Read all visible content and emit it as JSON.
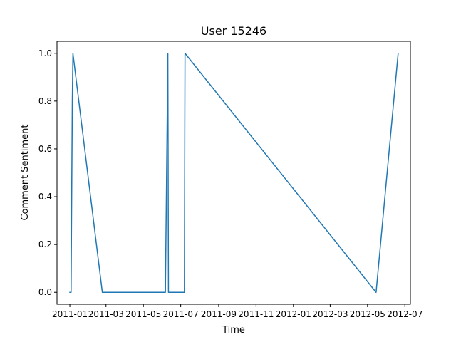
{
  "chart_data": {
    "type": "line",
    "title": "User 15246",
    "xlabel": "Time",
    "ylabel": "Comment Sentiment",
    "x_tick_labels": [
      "2011-01",
      "2011-03",
      "2011-05",
      "2011-07",
      "2011-09",
      "2011-11",
      "2012-01",
      "2012-03",
      "2012-05",
      "2012-07"
    ],
    "x_ticks": [
      "2011-01-01",
      "2011-03-01",
      "2011-05-01",
      "2011-07-01",
      "2011-09-01",
      "2011-11-01",
      "2012-01-01",
      "2012-03-01",
      "2012-05-01",
      "2012-07-01"
    ],
    "y_ticks": [
      0.0,
      0.2,
      0.4,
      0.6,
      0.8,
      1.0
    ],
    "y_tick_labels": [
      "0.0",
      "0.2",
      "0.4",
      "0.6",
      "0.8",
      "1.0"
    ],
    "xlim": [
      "2010-12-11",
      "2012-07-10"
    ],
    "ylim": [
      -0.05,
      1.05
    ],
    "grid": false,
    "series": [
      {
        "color": "#1f77b4",
        "x": [
          "2011-01-01",
          "2011-01-03",
          "2011-01-04",
          "2011-01-05",
          "2011-01-06",
          "2011-02-23",
          "2011-06-06",
          "2011-06-10",
          "2011-06-11",
          "2011-07-07",
          "2011-07-08",
          "2012-05-15",
          "2012-06-20"
        ],
        "values": [
          0.0,
          0.0,
          0.4,
          0.8,
          1.0,
          0.0,
          0.0,
          1.0,
          0.0,
          0.0,
          1.0,
          0.0,
          1.0
        ]
      }
    ]
  }
}
